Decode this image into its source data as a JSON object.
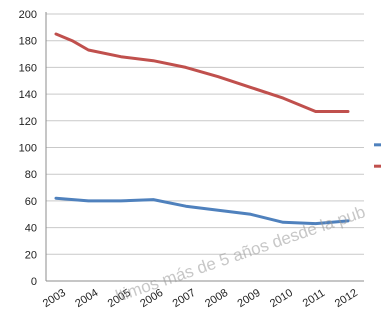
{
  "chart_data": {
    "type": "line",
    "title": "",
    "xlabel": "",
    "ylabel": "",
    "x": [
      "2003",
      "2004",
      "2005",
      "2006",
      "2007",
      "2008",
      "2009",
      "2010",
      "2011",
      "2012"
    ],
    "ylim": [
      0,
      200
    ],
    "yticks": [
      0,
      20,
      40,
      60,
      80,
      100,
      120,
      140,
      160,
      180,
      200
    ],
    "grid": "horizontal",
    "legend": "right (cropped)",
    "series": [
      {
        "color": "#c0504d",
        "points": [
          [
            2003,
            185
          ],
          [
            2003.5,
            180
          ],
          [
            2004,
            173
          ],
          [
            2005,
            168
          ],
          [
            2006,
            165
          ],
          [
            2007,
            160
          ],
          [
            2008,
            153
          ],
          [
            2009,
            145
          ],
          [
            2010,
            137
          ],
          [
            2011,
            127
          ],
          [
            2012,
            127
          ]
        ]
      },
      {
        "color": "#4f81bd",
        "points": [
          [
            2003,
            62
          ],
          [
            2004,
            60
          ],
          [
            2005,
            60
          ],
          [
            2006,
            61
          ],
          [
            2007,
            56
          ],
          [
            2008,
            53
          ],
          [
            2009,
            50
          ],
          [
            2010,
            44
          ],
          [
            2011,
            43
          ],
          [
            2012,
            45
          ]
        ]
      }
    ]
  },
  "watermark": "ltimos más de 5 años desde la pub"
}
